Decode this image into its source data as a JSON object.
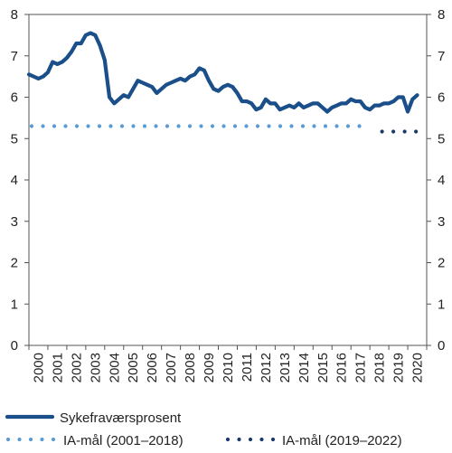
{
  "chart_data": {
    "type": "line",
    "title": "",
    "xlabel": "",
    "ylabel": "",
    "ylim": [
      0,
      8
    ],
    "yticks": [
      "0",
      "1",
      "2",
      "3",
      "4",
      "5",
      "6",
      "7",
      "8"
    ],
    "xticks": [
      "2000",
      "2001",
      "2002",
      "2003",
      "2004",
      "2005",
      "2006",
      "2007",
      "2008",
      "2009",
      "2010",
      "2011",
      "2012",
      "2013",
      "2014",
      "2015",
      "2016",
      "2017",
      "2018",
      "2019",
      "2020"
    ],
    "grid": false,
    "legend_position": "bottom",
    "series": [
      {
        "name": "Sykefraværsprosent",
        "style": "solid",
        "color": "#1b4f8a",
        "x": [
          2000.0,
          2000.25,
          2000.5,
          2000.75,
          2001.0,
          2001.25,
          2001.5,
          2001.75,
          2002.0,
          2002.25,
          2002.5,
          2002.75,
          2003.0,
          2003.25,
          2003.5,
          2003.75,
          2004.0,
          2004.25,
          2004.5,
          2004.75,
          2005.0,
          2005.25,
          2005.5,
          2005.75,
          2006.0,
          2006.25,
          2006.5,
          2006.75,
          2007.0,
          2007.25,
          2007.5,
          2007.75,
          2008.0,
          2008.25,
          2008.5,
          2008.75,
          2009.0,
          2009.25,
          2009.5,
          2009.75,
          2010.0,
          2010.25,
          2010.5,
          2010.75,
          2011.0,
          2011.25,
          2011.5,
          2011.75,
          2012.0,
          2012.25,
          2012.5,
          2012.75,
          2013.0,
          2013.25,
          2013.5,
          2013.75,
          2014.0,
          2014.25,
          2014.5,
          2014.75,
          2015.0,
          2015.25,
          2015.5,
          2015.75,
          2016.0,
          2016.25,
          2016.5,
          2016.75,
          2017.0,
          2017.25,
          2017.5,
          2017.75,
          2018.0,
          2018.25,
          2018.5,
          2018.75,
          2019.0,
          2019.25,
          2019.5,
          2019.75,
          2020.0,
          2020.25,
          2020.5
        ],
        "values": [
          6.55,
          6.5,
          6.45,
          6.5,
          6.6,
          6.85,
          6.8,
          6.85,
          6.95,
          7.1,
          7.3,
          7.3,
          7.5,
          7.55,
          7.5,
          7.25,
          6.9,
          6.0,
          5.85,
          5.95,
          6.05,
          6.0,
          6.2,
          6.4,
          6.35,
          6.3,
          6.25,
          6.1,
          6.2,
          6.3,
          6.35,
          6.4,
          6.45,
          6.4,
          6.5,
          6.55,
          6.7,
          6.65,
          6.4,
          6.2,
          6.15,
          6.25,
          6.3,
          6.25,
          6.1,
          5.9,
          5.9,
          5.85,
          5.7,
          5.75,
          5.95,
          5.85,
          5.85,
          5.7,
          5.75,
          5.8,
          5.75,
          5.85,
          5.75,
          5.8,
          5.85,
          5.85,
          5.75,
          5.65,
          5.75,
          5.8,
          5.85,
          5.85,
          5.95,
          5.9,
          5.9,
          5.75,
          5.7,
          5.8,
          5.8,
          5.85,
          5.85,
          5.9,
          6.0,
          6.0,
          5.65,
          5.95,
          6.05
        ]
      },
      {
        "name": "IA-mål (2001–2018)",
        "style": "dotted",
        "color": "#5b9bd5",
        "x": [
          2000,
          2018
        ],
        "values": [
          5.3,
          5.3
        ]
      },
      {
        "name": "IA-mål (2019–2022)",
        "style": "dotted",
        "color": "#1b3a6b",
        "x": [
          2018.5,
          2021
        ],
        "values": [
          5.17,
          5.17
        ]
      }
    ]
  }
}
